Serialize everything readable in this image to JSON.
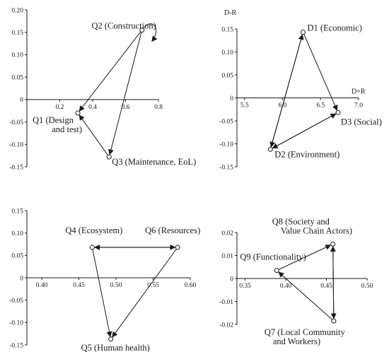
{
  "chart_data": [
    {
      "type": "scatter",
      "xlim": [
        0.0,
        0.8
      ],
      "ylim": [
        -0.15,
        0.2
      ],
      "xticks": [
        "0.2",
        "0.4",
        "0.6",
        "0.8"
      ],
      "yticks": [
        "0.20",
        "0.15",
        "0.10",
        "0.05",
        "0",
        "-0.05",
        "-0.10",
        "-0.15"
      ],
      "xlabel": "",
      "ylabel": "",
      "points": [
        {
          "id": "Q1",
          "label_lines": [
            "Q1 (Design",
            "and test)"
          ],
          "x": 0.31,
          "y": -0.03
        },
        {
          "id": "Q2",
          "label_lines": [
            "Q2 (Construction)"
          ],
          "x": 0.7,
          "y": 0.155
        },
        {
          "id": "Q3",
          "label_lines": [
            "Q3 (Maintenance, EoL)"
          ],
          "x": 0.5,
          "y": -0.128
        }
      ],
      "arrows": [
        [
          "Q2",
          "Q1"
        ],
        [
          "Q2",
          "Q3"
        ],
        [
          "Q3",
          "Q1"
        ],
        [
          "Q2",
          "Q2"
        ]
      ]
    },
    {
      "type": "scatter",
      "xlim": [
        5.4,
        7.0
      ],
      "ylim": [
        -0.15,
        0.15
      ],
      "xticks": [
        "5.5",
        "6.0",
        "6.5",
        "7.0"
      ],
      "yticks": [
        "0.15",
        "0.10",
        "0.05",
        "0",
        "-0.05",
        "-0.10",
        "-0.15"
      ],
      "xlabel": "D+R",
      "ylabel": "D-R",
      "points": [
        {
          "id": "D1",
          "label_lines": [
            "D1 (Economic)"
          ],
          "x": 6.27,
          "y": 0.143
        },
        {
          "id": "D2",
          "label_lines": [
            "D2 (Environment)"
          ],
          "x": 5.84,
          "y": -0.112
        },
        {
          "id": "D3",
          "label_lines": [
            "D3 (Social)"
          ],
          "x": 6.73,
          "y": -0.032
        }
      ],
      "arrows": [
        [
          "D1",
          "D3"
        ],
        [
          "D1",
          "D2"
        ],
        [
          "D2",
          "D1"
        ],
        [
          "D3",
          "D2"
        ],
        [
          "D2",
          "D3"
        ]
      ]
    },
    {
      "type": "scatter",
      "xlim": [
        0.38,
        0.6
      ],
      "ylim": [
        -0.15,
        0.15
      ],
      "xticks": [
        "0.40",
        "0.45",
        "0.50",
        "0.55",
        "0.60"
      ],
      "yticks": [
        "0.15",
        "0.10",
        "0.05",
        "0",
        "-0.05",
        "-0.10",
        "-0.15"
      ],
      "xlabel": "",
      "ylabel": "",
      "points": [
        {
          "id": "Q4",
          "label_lines": [
            "Q4 (Ecosystem)"
          ],
          "x": 0.468,
          "y": 0.068
        },
        {
          "id": "Q5",
          "label_lines": [
            "Q5 (Human health)"
          ],
          "x": 0.493,
          "y": -0.137
        },
        {
          "id": "Q6",
          "label_lines": [
            "Q6 (Resources)"
          ],
          "x": 0.583,
          "y": 0.068
        }
      ],
      "arrows": [
        [
          "Q4",
          "Q6"
        ],
        [
          "Q6",
          "Q4"
        ],
        [
          "Q4",
          "Q5"
        ],
        [
          "Q6",
          "Q5"
        ]
      ]
    },
    {
      "type": "scatter",
      "xlim": [
        0.34,
        0.5
      ],
      "ylim": [
        -0.02,
        0.02
      ],
      "xticks": [
        "0.35",
        "0.40",
        "0.45",
        "0.50"
      ],
      "yticks": [
        "0.02",
        "0.01",
        "0",
        "-0.01",
        "-0.02"
      ],
      "xlabel": "",
      "ylabel": "",
      "points": [
        {
          "id": "Q7",
          "label_lines": [
            "Q7 (Local Community",
            "and Workers)"
          ],
          "x": 0.459,
          "y": -0.0185
        },
        {
          "id": "Q8",
          "label_lines": [
            "Q8 (Society and",
            "Value Chain Actors)"
          ],
          "x": 0.458,
          "y": 0.015
        },
        {
          "id": "Q9",
          "label_lines": [
            "Q9 (Functionality)"
          ],
          "x": 0.389,
          "y": 0.0035
        }
      ],
      "arrows": [
        [
          "Q9",
          "Q8"
        ],
        [
          "Q8",
          "Q7"
        ],
        [
          "Q7",
          "Q8"
        ],
        [
          "Q7",
          "Q9"
        ]
      ]
    }
  ]
}
